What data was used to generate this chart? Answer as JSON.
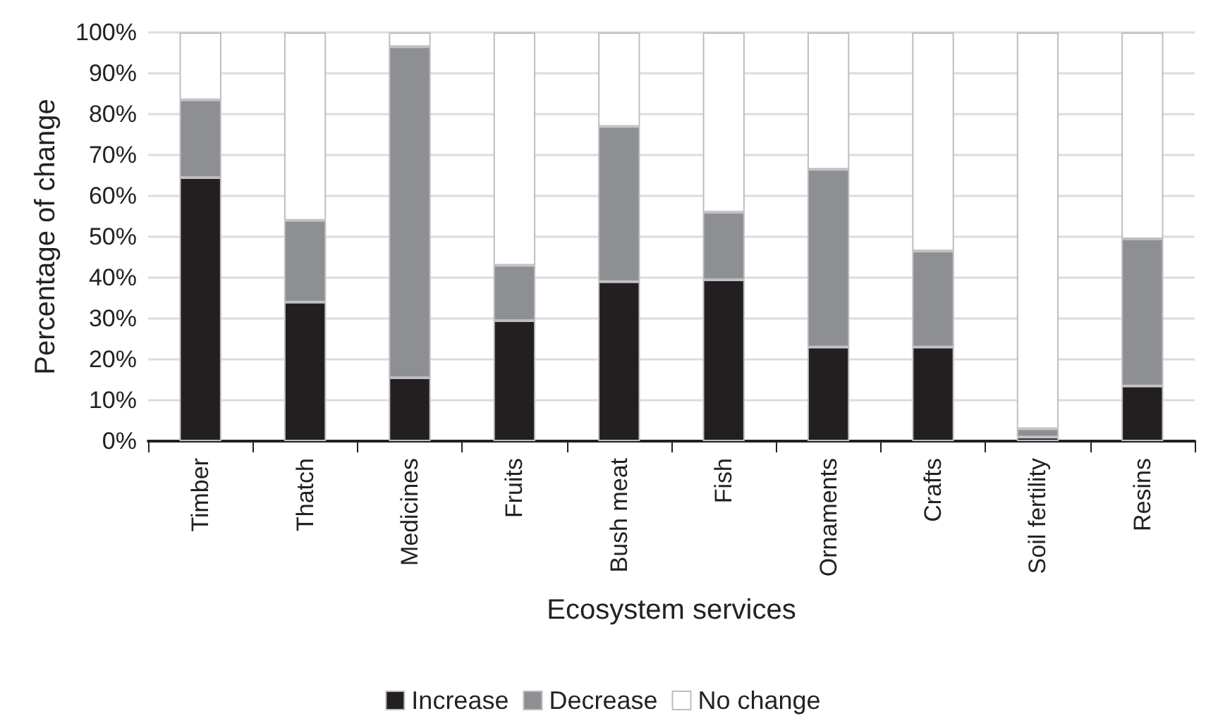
{
  "chart_data": {
    "type": "bar",
    "stacked": true,
    "xlabel": "Ecosystem services",
    "ylabel": "Percentage of change",
    "categories": [
      "Timber",
      "Thatch",
      "Medicines",
      "Fruits",
      "Bush meat",
      "Fish",
      "Ornaments",
      "Crafts",
      "Soil fertility",
      "Resins"
    ],
    "series": [
      {
        "name": "Increase",
        "color": "#231f20",
        "values": [
          64.5,
          34,
          15.5,
          29.5,
          39,
          39.5,
          23,
          23,
          1,
          13.5
        ]
      },
      {
        "name": "Decrease",
        "color": "#8e8f93",
        "values": [
          19,
          20,
          81,
          13.5,
          38,
          16.5,
          43.5,
          23.5,
          2,
          36
        ]
      },
      {
        "name": "No change",
        "color": "#ffffff",
        "values": [
          16.5,
          46,
          3.5,
          57,
          23,
          44,
          33.5,
          53.5,
          97,
          50.5
        ]
      }
    ],
    "ylim": [
      0,
      100
    ],
    "yticks": [
      {
        "value": 0,
        "label": "0%"
      },
      {
        "value": 10,
        "label": "10%"
      },
      {
        "value": 20,
        "label": "20%"
      },
      {
        "value": 30,
        "label": "30%"
      },
      {
        "value": 40,
        "label": "40%"
      },
      {
        "value": 50,
        "label": "50%"
      },
      {
        "value": 60,
        "label": "60%"
      },
      {
        "value": 70,
        "label": "70%"
      },
      {
        "value": 80,
        "label": "80%"
      },
      {
        "value": 90,
        "label": "90%"
      },
      {
        "value": 100,
        "label": "100%"
      }
    ],
    "grid": "y",
    "legend": "bottom"
  }
}
